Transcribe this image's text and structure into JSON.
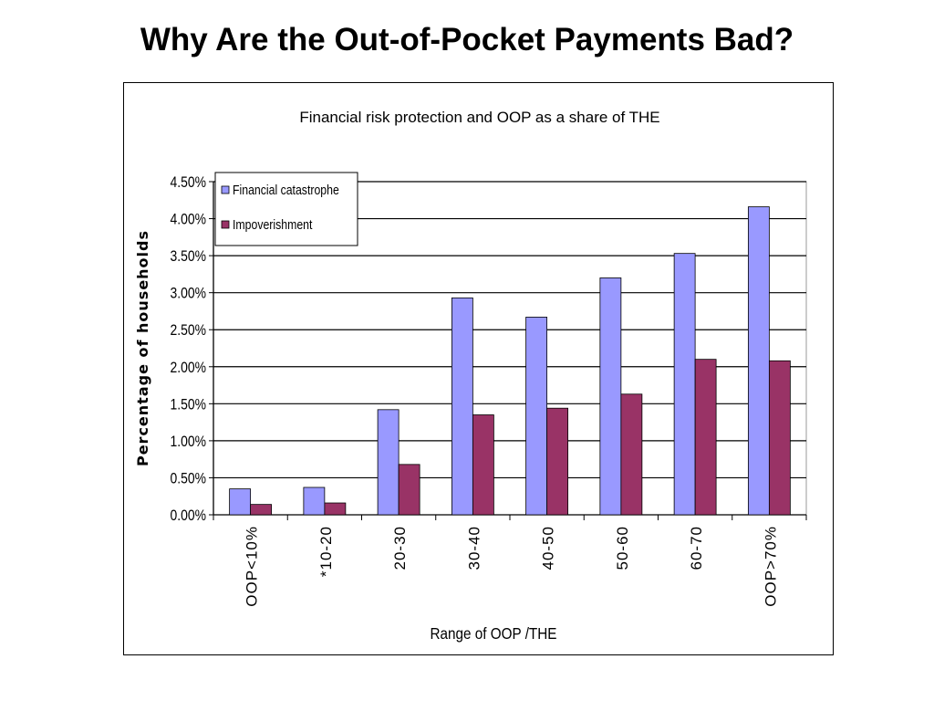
{
  "slide": {
    "title": "Why Are the Out-of-Pocket Payments Bad?"
  },
  "chart_data": {
    "type": "bar",
    "title": "Financial risk protection and OOP as a share of THE",
    "xlabel": "Range of OOP /THE",
    "ylabel": "Percentage of households",
    "categories": [
      "OOP<10%",
      "*10-20",
      "20-30",
      "30-40",
      "40-50",
      "50-60",
      "60-70",
      "OOP>70%"
    ],
    "series": [
      {
        "name": "Financial catastrophe",
        "color": "#9999ff",
        "values": [
          0.35,
          0.37,
          1.42,
          2.93,
          2.67,
          3.2,
          3.53,
          4.16
        ]
      },
      {
        "name": "Impoverishment",
        "color": "#993366",
        "values": [
          0.14,
          0.16,
          0.68,
          1.35,
          1.44,
          1.63,
          2.1,
          2.08
        ]
      }
    ],
    "ylim": [
      0,
      4.5
    ],
    "yticks": [
      0,
      0.5,
      1.0,
      1.5,
      2.0,
      2.5,
      3.0,
      3.5,
      4.0,
      4.5
    ],
    "ytick_labels": [
      "0.00%",
      "0.50%",
      "1.00%",
      "1.50%",
      "2.00%",
      "2.50%",
      "3.00%",
      "3.50%",
      "4.00%",
      "4.50%"
    ],
    "grid": true,
    "legend_position": "top-left"
  }
}
